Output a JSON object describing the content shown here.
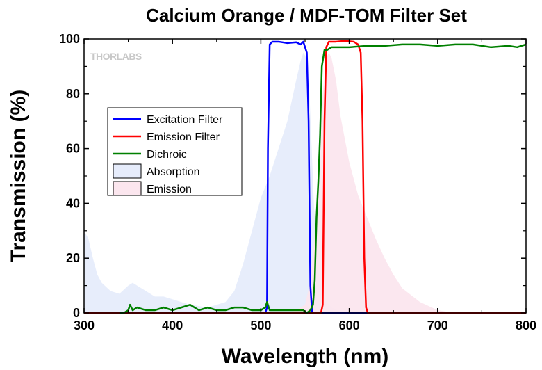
{
  "chart_data": {
    "type": "line",
    "title": "Calcium Orange / MDF-TOM Filter Set",
    "xlabel": "Wavelength (nm)",
    "ylabel": "Transmission (%)",
    "xlim": [
      300,
      800
    ],
    "ylim": [
      0,
      100
    ],
    "xticks": [
      300,
      400,
      500,
      600,
      700,
      800
    ],
    "yticks": [
      0,
      20,
      40,
      60,
      80,
      100
    ],
    "grid": false,
    "legend_position": "upper-left",
    "watermark": "THORLABS",
    "series": [
      {
        "name": "Excitation Filter",
        "kind": "line",
        "color": "#0000ff",
        "x": [
          300,
          505,
          507,
          508,
          510,
          513,
          520,
          530,
          540,
          545,
          548,
          550,
          552,
          554,
          556,
          558,
          800
        ],
        "y": [
          0,
          0,
          2,
          60,
          98,
          99,
          99,
          98.5,
          98.8,
          98,
          99,
          97,
          95,
          70,
          10,
          0,
          0
        ]
      },
      {
        "name": "Emission Filter",
        "kind": "line",
        "color": "#ff0000",
        "x": [
          300,
          568,
          570,
          572,
          574,
          577,
          585,
          595,
          605,
          610,
          613,
          615,
          617,
          619,
          621,
          800
        ],
        "y": [
          0,
          0,
          3,
          70,
          97,
          99,
          99,
          99.3,
          99,
          98,
          95,
          70,
          20,
          2,
          0,
          0
        ]
      },
      {
        "name": "Dichroic",
        "kind": "line",
        "color": "#008000",
        "x": [
          340,
          345,
          350,
          352,
          355,
          360,
          370,
          380,
          390,
          400,
          410,
          420,
          430,
          440,
          450,
          460,
          470,
          480,
          490,
          500,
          505,
          507,
          510,
          515,
          520,
          530,
          540,
          548,
          552,
          556,
          559,
          561,
          563,
          565,
          567,
          569,
          572,
          575,
          580,
          590,
          600,
          620,
          640,
          660,
          680,
          700,
          720,
          740,
          760,
          780,
          790,
          800
        ],
        "y": [
          0,
          0,
          1,
          3,
          1,
          2,
          1,
          1,
          2,
          1,
          2,
          3,
          1,
          2,
          1,
          1,
          2,
          2,
          1,
          1,
          2,
          4,
          1,
          1,
          1,
          1,
          1,
          1,
          0,
          1,
          3,
          12,
          35,
          48,
          65,
          90,
          96,
          96,
          97,
          97,
          97,
          97.5,
          97.5,
          98,
          98,
          97.5,
          98,
          98,
          97,
          97.5,
          97,
          98
        ]
      },
      {
        "name": "Absorption",
        "kind": "area",
        "color": "#e6ecfb",
        "x": [
          300,
          305,
          310,
          315,
          320,
          330,
          340,
          350,
          355,
          360,
          370,
          380,
          390,
          400,
          420,
          440,
          460,
          470,
          480,
          490,
          500,
          510,
          520,
          530,
          540,
          545,
          548,
          550,
          552,
          555,
          560,
          565,
          570,
          580,
          590,
          600
        ],
        "y": [
          30,
          27,
          20,
          14,
          11,
          8,
          7,
          10,
          11,
          10,
          8,
          6,
          6,
          5,
          3,
          2,
          4,
          8,
          18,
          30,
          42,
          50,
          60,
          70,
          85,
          92,
          95,
          94,
          92,
          80,
          40,
          15,
          6,
          2,
          0.5,
          0
        ]
      },
      {
        "name": "Emission",
        "kind": "area",
        "color": "#fbe6ee",
        "x": [
          530,
          540,
          550,
          555,
          560,
          565,
          570,
          574,
          577,
          580,
          585,
          590,
          600,
          610,
          620,
          630,
          640,
          650,
          660,
          680,
          700,
          720
        ],
        "y": [
          0,
          1,
          3,
          10,
          25,
          50,
          80,
          93,
          95,
          93,
          85,
          72,
          55,
          43,
          35,
          27,
          20,
          14,
          9,
          4,
          1,
          0
        ]
      }
    ]
  }
}
